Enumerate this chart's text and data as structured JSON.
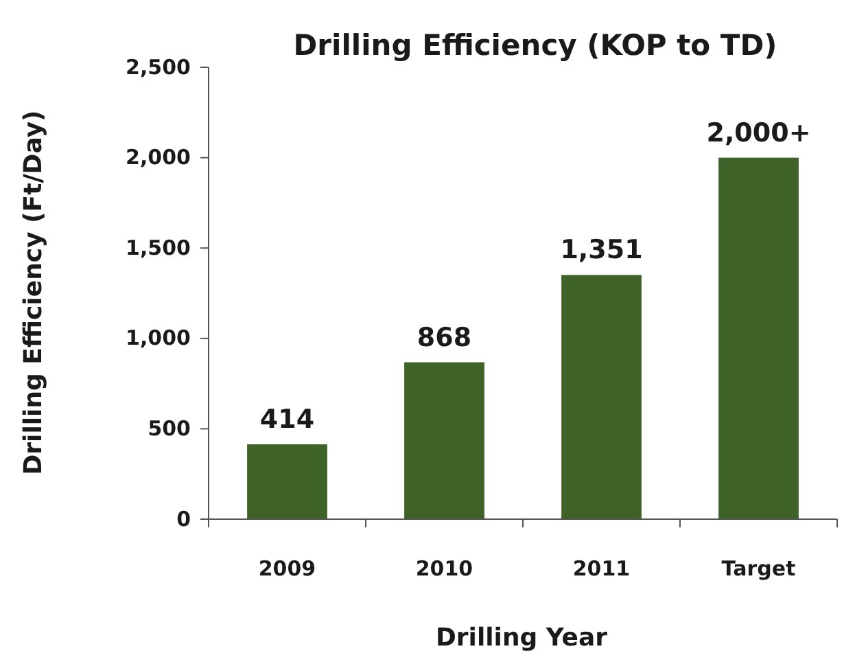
{
  "chart_data": {
    "type": "bar",
    "title": "Drilling Efficiency (KOP to TD)",
    "xlabel": "Drilling Year",
    "ylabel": "Drilling Efficiency (Ft/Day)",
    "categories": [
      "2009",
      "2010",
      "2011",
      "Target"
    ],
    "values": [
      414,
      868,
      1351,
      2000
    ],
    "value_labels": [
      "414",
      "868",
      "1,351",
      "2,000+"
    ],
    "color": "#3f6229",
    "ylim": [
      0,
      2500
    ],
    "yticks": [
      {
        "value": 0,
        "label": "0"
      },
      {
        "value": 500,
        "label": "500"
      },
      {
        "value": 1000,
        "label": "1,000"
      },
      {
        "value": 1500,
        "label": "1,500"
      },
      {
        "value": 2000,
        "label": "2,000"
      },
      {
        "value": 2500,
        "label": "2,500"
      }
    ],
    "grid": false
  }
}
